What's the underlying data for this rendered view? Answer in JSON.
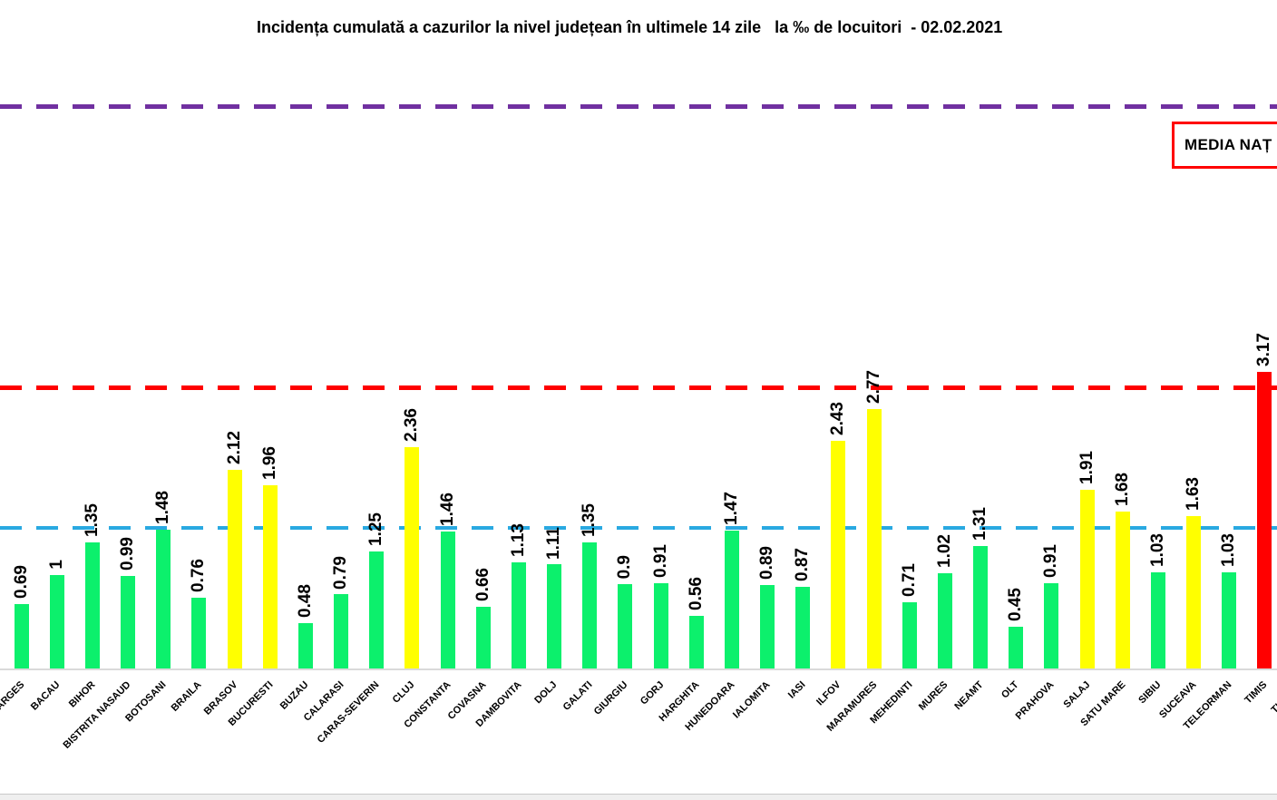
{
  "media_box": {
    "label": "MEDIA NAȚ",
    "border_color": "#FF0000"
  },
  "chart_data": {
    "type": "bar",
    "title": "Incidența cumulată a cazurilor la nivel județean în ultimele 14 zile   la ‰ de locuitori  - 02.02.2021",
    "categories": [
      "ARGES",
      "BACAU",
      "BIHOR",
      "BISTRITA NASAUD",
      "BOTOSANI",
      "BRAILA",
      "BRASOV",
      "BUCURESTI",
      "BUZAU",
      "CALARASI",
      "CARAS-SEVERIN",
      "CLUJ",
      "CONSTANTA",
      "COVASNA",
      "DAMBOVITA",
      "DOLJ",
      "GALATI",
      "GIURGIU",
      "GORJ",
      "HARGHITA",
      "HUNEDOARA",
      "IALOMITA",
      "IASI",
      "ILFOV",
      "MARAMURES",
      "MEHEDINTI",
      "MURES",
      "NEAMT",
      "OLT",
      "PRAHOVA",
      "SALAJ",
      "SATU MARE",
      "SIBIU",
      "SUCEAVA",
      "TELEORMAN",
      "TIMIS"
    ],
    "values": [
      0.69,
      1,
      1.35,
      0.99,
      1.48,
      0.76,
      2.12,
      1.96,
      0.48,
      0.79,
      1.25,
      2.36,
      1.46,
      0.66,
      1.13,
      1.11,
      1.35,
      0.9,
      0.91,
      0.56,
      1.47,
      0.89,
      0.87,
      2.43,
      2.77,
      0.71,
      1.02,
      1.31,
      0.45,
      0.91,
      1.91,
      1.68,
      1.03,
      1.63,
      1.03,
      3.17
    ],
    "value_labels": [
      "0.69",
      "1",
      "1.35",
      "0.99",
      "1.48",
      "0.76",
      "2.12",
      "1.96",
      "0.48",
      "0.79",
      "1.25",
      "2.36",
      "1.46",
      "0.66",
      "1.13",
      "1.11",
      "1.35",
      "0.9",
      "0.91",
      "0.56",
      "1.47",
      "0.89",
      "0.87",
      "2.43",
      "2.77",
      "0.71",
      "1.02",
      "1.31",
      "0.45",
      "0.91",
      "1.91",
      "1.68",
      "1.03",
      "1.63",
      "1.03",
      "3.17"
    ],
    "partial_trailing_category": "TULCEA",
    "xlabel": "",
    "ylabel": "",
    "ylim": [
      0,
      7
    ],
    "grid": false,
    "legend_position": "none",
    "bar_colors": {
      "green": "#0CF06C",
      "yellow": "#FFFF00",
      "red": "#FF0000"
    },
    "color_thresholds": {
      "yellow_min": 1.5,
      "red_min": 3
    },
    "reference_lines": [
      {
        "name": "purple-line",
        "value": 6,
        "color": "#7030A0"
      },
      {
        "name": "red-line",
        "value": 3,
        "color": "#FF0000"
      },
      {
        "name": "blue-line",
        "value": 1.5,
        "color": "#29A9E1"
      }
    ]
  }
}
